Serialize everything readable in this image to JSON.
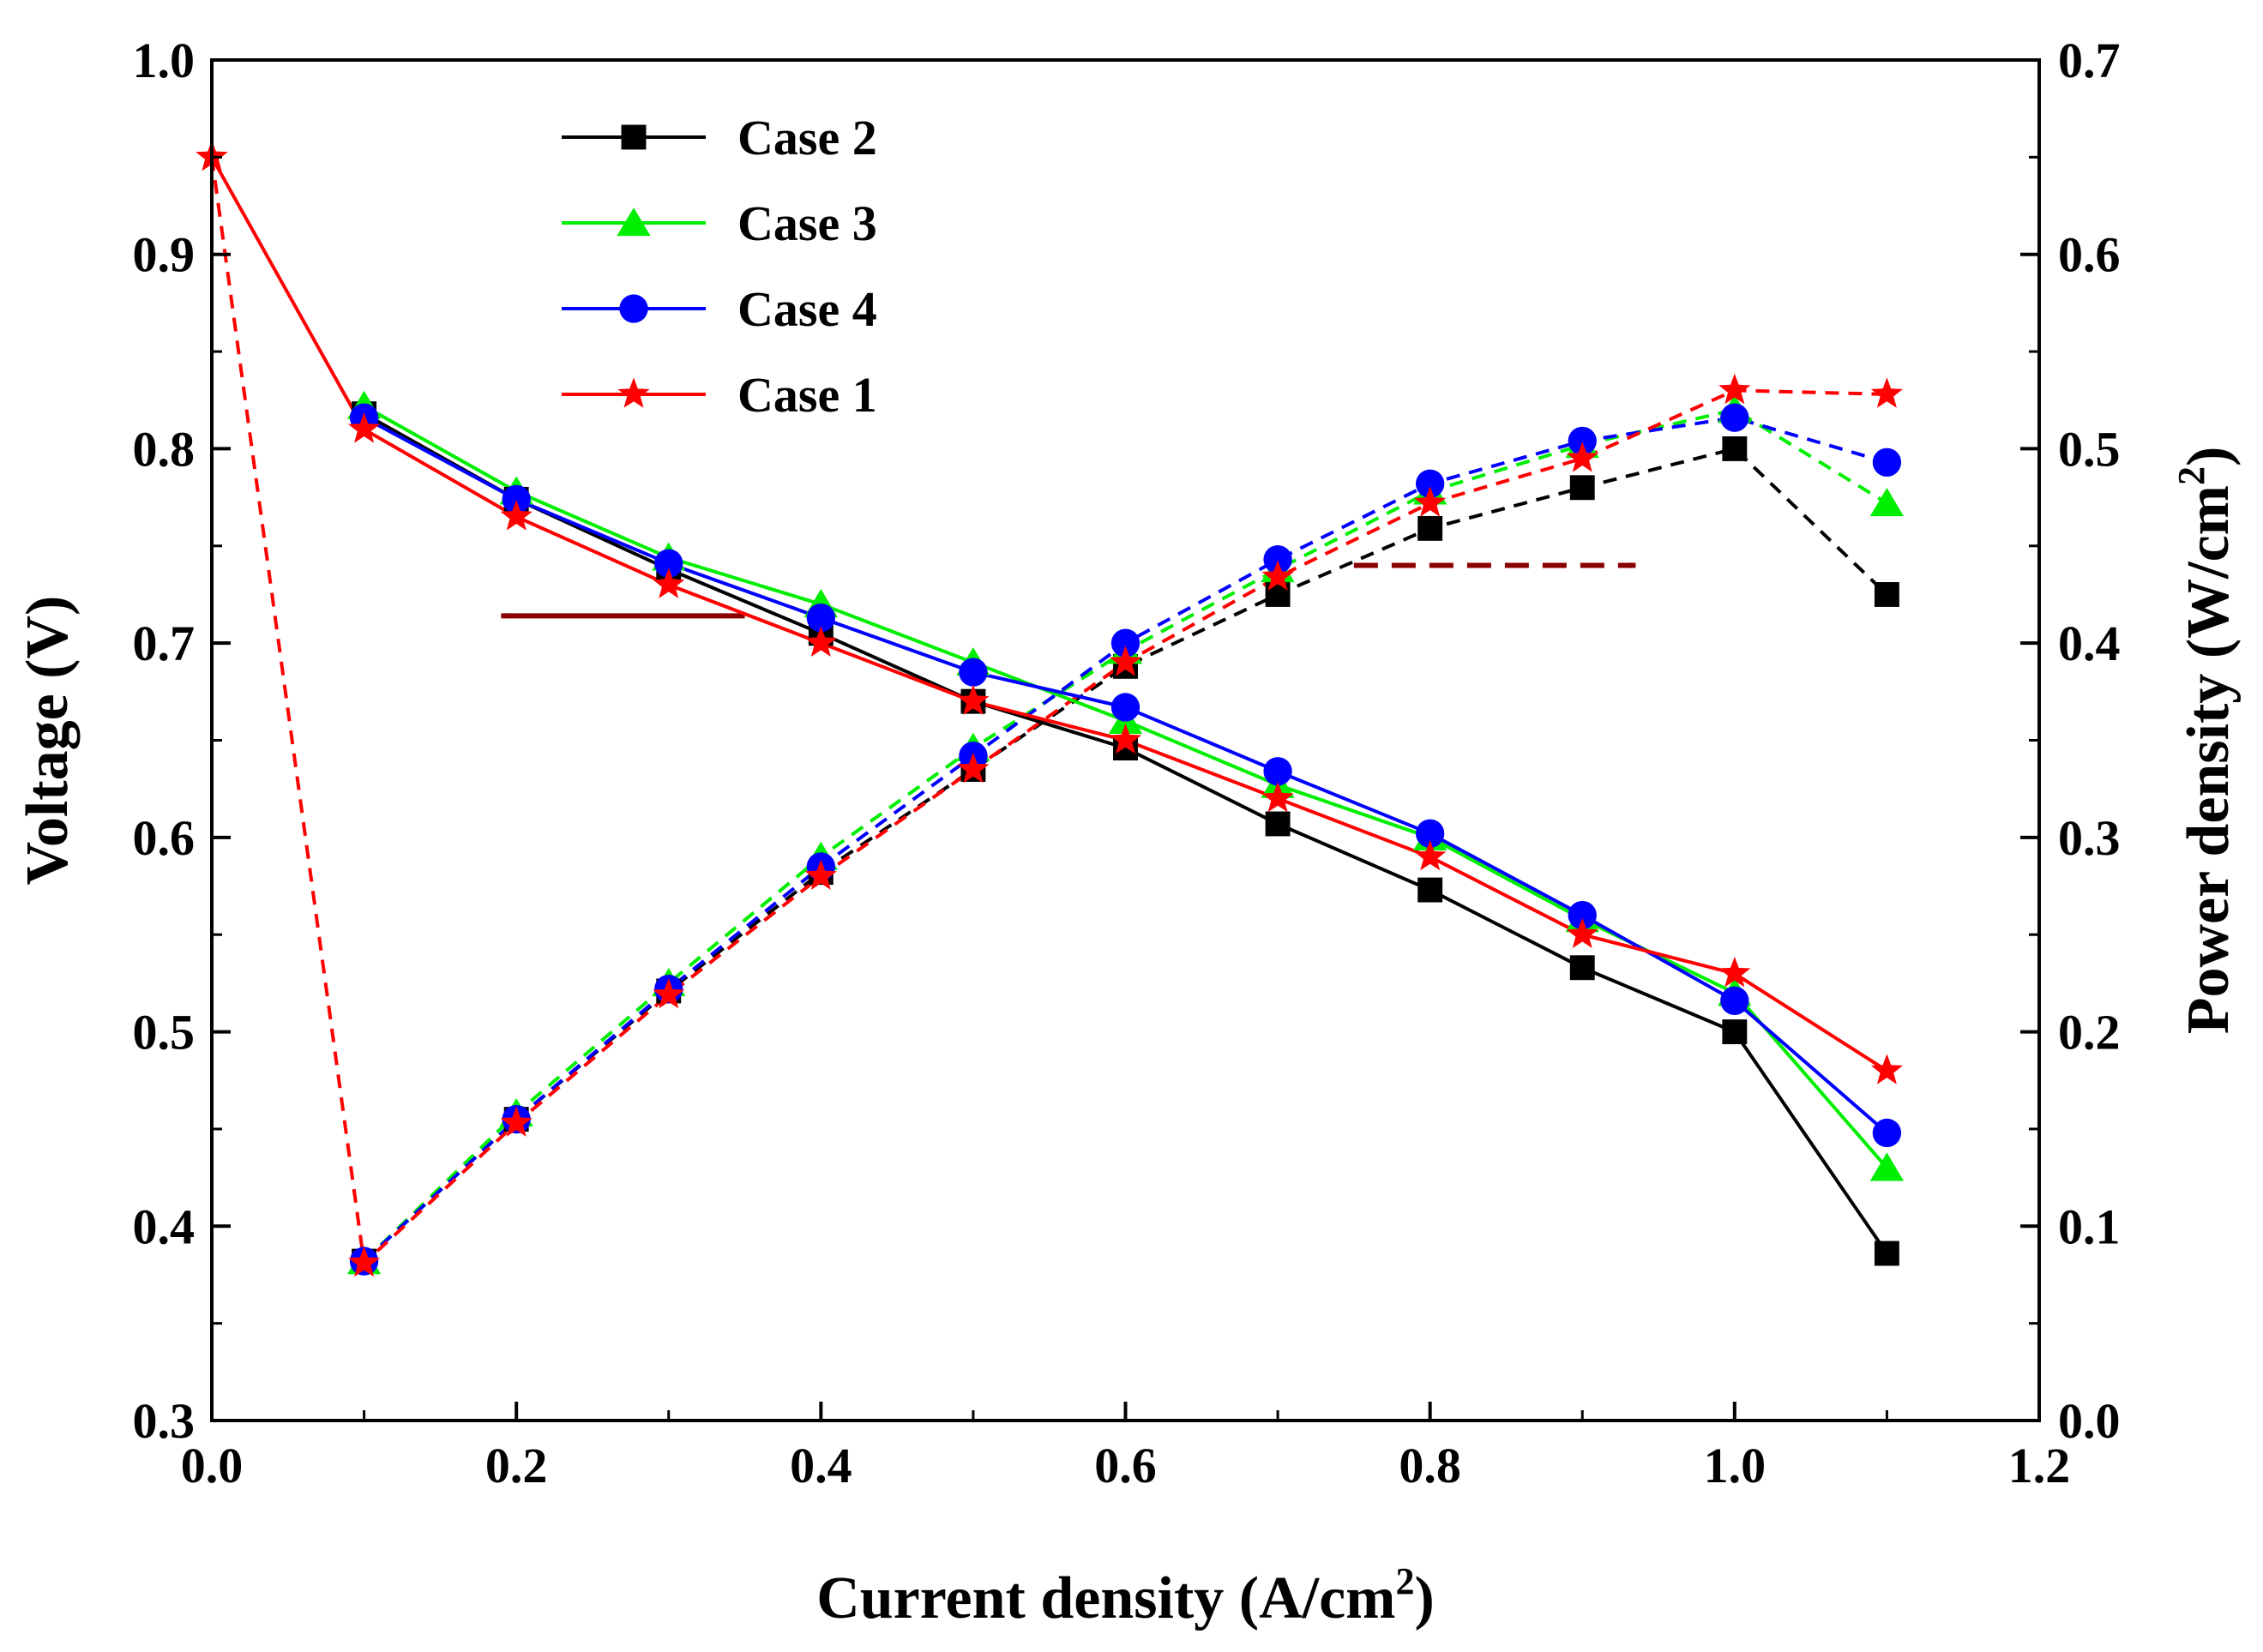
{
  "chart_data": {
    "type": "line",
    "title": "",
    "xlabel": {
      "main": "Current density (A/cm",
      "sup": "2",
      "end": ")"
    },
    "ylabel_left": "Voltage (V)",
    "ylabel_right": {
      "main": "Power density (W/cm",
      "sup": "2",
      "end": ")"
    },
    "xlim": [
      0.0,
      1.2
    ],
    "ylim_left": [
      0.3,
      1.0
    ],
    "ylim_right": [
      0.0,
      0.7
    ],
    "x_ticks": [
      "0.0",
      "0.2",
      "0.4",
      "0.6",
      "0.8",
      "1.0",
      "1.2"
    ],
    "y_left_ticks": [
      "0.3",
      "0.4",
      "0.5",
      "0.6",
      "0.7",
      "0.8",
      "0.9",
      "1.0"
    ],
    "y_right_ticks": [
      "0.0",
      "0.1",
      "0.2",
      "0.3",
      "0.4",
      "0.5",
      "0.6",
      "0.7"
    ],
    "grid": false,
    "legend_position": "top-left",
    "legend": [
      "Case 2",
      "Case 3",
      "Case 4",
      "Case 1"
    ],
    "series": [
      {
        "name": "Case 2",
        "color": "#000000",
        "marker": "square",
        "voltage_x": [
          0.1,
          0.2,
          0.3,
          0.4,
          0.5,
          0.6,
          0.7,
          0.8,
          0.9,
          1.0,
          1.1
        ],
        "voltage": [
          0.818,
          0.774,
          0.738,
          0.705,
          0.67,
          0.646,
          0.607,
          0.573,
          0.533,
          0.5,
          0.386
        ],
        "power_x": [
          0.1,
          0.2,
          0.3,
          0.4,
          0.5,
          0.6,
          0.7,
          0.8,
          0.9,
          1.0,
          1.1
        ],
        "power": [
          0.082,
          0.155,
          0.221,
          0.282,
          0.335,
          0.388,
          0.425,
          0.459,
          0.48,
          0.5,
          0.425
        ]
      },
      {
        "name": "Case 3",
        "color": "#00ee00",
        "marker": "triangle",
        "voltage_x": [
          0.1,
          0.2,
          0.3,
          0.4,
          0.5,
          0.6,
          0.7,
          0.8,
          0.9,
          1.0,
          1.1
        ],
        "voltage": [
          0.822,
          0.778,
          0.744,
          0.72,
          0.69,
          0.66,
          0.627,
          0.6,
          0.558,
          0.52,
          0.43
        ],
        "power_x": [
          0.1,
          0.2,
          0.3,
          0.4,
          0.5,
          0.6,
          0.7,
          0.8,
          0.9,
          1.0,
          1.1
        ],
        "power": [
          0.082,
          0.158,
          0.225,
          0.29,
          0.346,
          0.396,
          0.438,
          0.478,
          0.502,
          0.52,
          0.472
        ]
      },
      {
        "name": "Case 4",
        "color": "#0000ff",
        "marker": "circle",
        "voltage_x": [
          0.1,
          0.2,
          0.3,
          0.4,
          0.5,
          0.6,
          0.7,
          0.8,
          0.9,
          1.0,
          1.1
        ],
        "voltage": [
          0.816,
          0.774,
          0.741,
          0.713,
          0.685,
          0.667,
          0.634,
          0.602,
          0.56,
          0.516,
          0.448
        ],
        "power_x": [
          0.1,
          0.2,
          0.3,
          0.4,
          0.5,
          0.6,
          0.7,
          0.8,
          0.9,
          1.0,
          1.1
        ],
        "power": [
          0.082,
          0.155,
          0.222,
          0.285,
          0.342,
          0.4,
          0.443,
          0.482,
          0.504,
          0.516,
          0.493
        ]
      },
      {
        "name": "Case 1",
        "color": "#ff0000",
        "marker": "star",
        "voltage_x": [
          0.0,
          0.1,
          0.2,
          0.3,
          0.4,
          0.5,
          0.6,
          0.7,
          0.8,
          0.9,
          1.0,
          1.1
        ],
        "voltage": [
          0.95,
          0.81,
          0.765,
          0.73,
          0.7,
          0.67,
          0.65,
          0.62,
          0.59,
          0.55,
          0.53,
          0.48
        ],
        "power_x": [
          0.0,
          0.1,
          0.2,
          0.3,
          0.4,
          0.5,
          0.6,
          0.7,
          0.8,
          0.9,
          1.0,
          1.1
        ],
        "power": [
          0.65,
          0.081,
          0.153,
          0.219,
          0.28,
          0.335,
          0.39,
          0.434,
          0.472,
          0.495,
          0.53,
          0.528
        ]
      }
    ],
    "annotations": [
      {
        "type": "arrow",
        "direction": "left",
        "axis": "left",
        "color": "#8b0000",
        "style": "solid",
        "x_from": 0.35,
        "x_to": 0.19,
        "y": 0.714
      },
      {
        "type": "arrow",
        "direction": "right",
        "axis": "right",
        "color": "#8b0000",
        "style": "dashed",
        "x_from": 0.75,
        "x_to": 0.935,
        "y": 0.44
      }
    ]
  }
}
